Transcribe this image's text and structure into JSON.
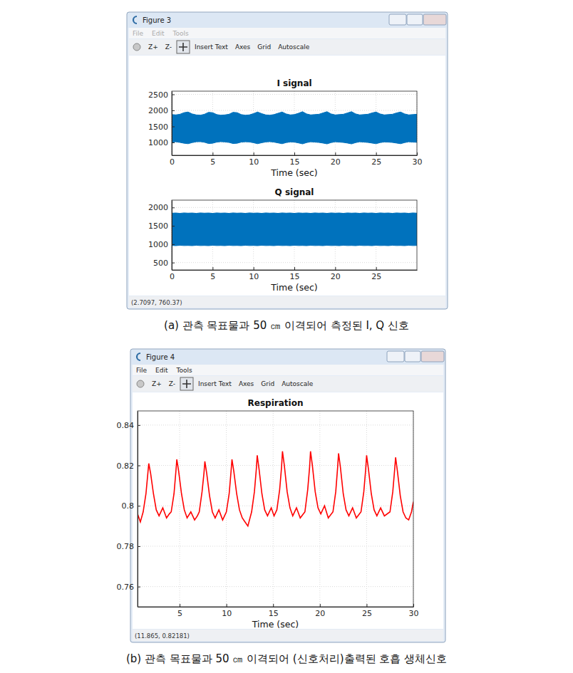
{
  "windows": [
    {
      "title": "Figure 3",
      "menu": [
        "File",
        "Edit",
        "Tools"
      ],
      "toolbar": [
        "Z+",
        "Z-",
        "Insert Text",
        "Axes",
        "Grid",
        "Autoscale"
      ],
      "status": "(2.7097, 760.37)",
      "caption": "(a) 관측 목표물과 50 ㎝ 이격되어 측정된 I, Q 신호"
    },
    {
      "title": "Figure 4",
      "menu": [
        "File",
        "Edit",
        "Tools"
      ],
      "toolbar": [
        "Z+",
        "Z-",
        "Insert Text",
        "Axes",
        "Grid",
        "Autoscale"
      ],
      "status": "(11.865, 0.82181)",
      "caption": "(b) 관측 목표물과 50 ㎝ 이격되어 (신호처리)출력된 호흡 생체신호"
    }
  ],
  "chart_data": [
    {
      "type": "range_area",
      "title": "I signal",
      "x_label": "Time (sec)",
      "color": "#0072bd",
      "grid": true,
      "xlim": [
        0,
        30
      ],
      "xticks": [
        0,
        5,
        10,
        15,
        20,
        25,
        30
      ],
      "ylim": [
        600,
        2600
      ],
      "yticks": [
        1000,
        1500,
        2000,
        2500
      ],
      "x": [
        0,
        0.5,
        1,
        1.5,
        2,
        2.5,
        3,
        3.5,
        4,
        4.5,
        5,
        5.5,
        6,
        6.5,
        7,
        7.5,
        8,
        8.5,
        9,
        9.5,
        10,
        10.5,
        11,
        11.5,
        12,
        12.5,
        13,
        13.5,
        14,
        14.5,
        15,
        15.5,
        16,
        16.5,
        17,
        17.5,
        18,
        18.5,
        19,
        19.5,
        20,
        20.5,
        21,
        21.5,
        22,
        22.5,
        23,
        23.5,
        24,
        24.5,
        25,
        25.5,
        26,
        26.5,
        27,
        27.5,
        28,
        28.5,
        29,
        29.5,
        30
      ],
      "values": [
        [
          1010,
          1870
        ],
        [
          1020,
          1860
        ],
        [
          1000,
          1880
        ],
        [
          975,
          1930
        ],
        [
          960,
          1950
        ],
        [
          995,
          1890
        ],
        [
          1020,
          1860
        ],
        [
          1025,
          1850
        ],
        [
          1005,
          1880
        ],
        [
          965,
          1940
        ],
        [
          975,
          1930
        ],
        [
          1010,
          1870
        ],
        [
          1025,
          1850
        ],
        [
          1015,
          1860
        ],
        [
          1000,
          1880
        ],
        [
          965,
          1940
        ],
        [
          975,
          1930
        ],
        [
          1010,
          1870
        ],
        [
          1020,
          1850
        ],
        [
          1015,
          1860
        ],
        [
          990,
          1900
        ],
        [
          960,
          1950
        ],
        [
          990,
          1900
        ],
        [
          1015,
          1860
        ],
        [
          1025,
          1850
        ],
        [
          1010,
          1870
        ],
        [
          985,
          1910
        ],
        [
          960,
          1950
        ],
        [
          995,
          1890
        ],
        [
          1015,
          1860
        ],
        [
          1010,
          1870
        ],
        [
          985,
          1910
        ],
        [
          955,
          1960
        ],
        [
          995,
          1890
        ],
        [
          1020,
          1860
        ],
        [
          1010,
          1870
        ],
        [
          1000,
          1880
        ],
        [
          980,
          1920
        ],
        [
          955,
          1960
        ],
        [
          995,
          1890
        ],
        [
          1020,
          1860
        ],
        [
          1010,
          1870
        ],
        [
          1000,
          1880
        ],
        [
          980,
          1920
        ],
        [
          955,
          1960
        ],
        [
          995,
          1890
        ],
        [
          1020,
          1860
        ],
        [
          1010,
          1870
        ],
        [
          1000,
          1880
        ],
        [
          980,
          1920
        ],
        [
          960,
          1950
        ],
        [
          995,
          1890
        ],
        [
          1015,
          1860
        ],
        [
          1010,
          1870
        ],
        [
          1000,
          1880
        ],
        [
          980,
          1920
        ],
        [
          960,
          1950
        ],
        [
          995,
          1890
        ],
        [
          1020,
          1860
        ],
        [
          1010,
          1870
        ],
        [
          1005,
          1880
        ]
      ]
    },
    {
      "type": "range_area",
      "title": "Q signal",
      "x_label": "Time (sec)",
      "color": "#0072bd",
      "grid": true,
      "xlim": [
        0,
        30
      ],
      "xticks": [
        0,
        5,
        10,
        15,
        20,
        25
      ],
      "ylim": [
        300,
        2200
      ],
      "yticks": [
        500,
        1000,
        1500,
        2000
      ],
      "x": [
        0,
        0.5,
        1,
        1.5,
        2,
        2.5,
        3,
        3.5,
        4,
        4.5,
        5,
        5.5,
        6,
        6.5,
        7,
        7.5,
        8,
        8.5,
        9,
        9.5,
        10,
        10.5,
        11,
        11.5,
        12,
        12.5,
        13,
        13.5,
        14,
        14.5,
        15,
        15.5,
        16,
        16.5,
        17,
        17.5,
        18,
        18.5,
        19,
        19.5,
        20,
        20.5,
        21,
        21.5,
        22,
        22.5,
        23,
        23.5,
        24,
        24.5,
        25,
        25.5,
        26,
        26.5,
        27,
        27.5,
        28,
        28.5,
        29,
        29.5,
        30
      ],
      "values": [
        [
          965,
          1845
        ],
        [
          960,
          1850
        ],
        [
          970,
          1840
        ],
        [
          962,
          1852
        ],
        [
          965,
          1845
        ],
        [
          960,
          1850
        ],
        [
          970,
          1840
        ],
        [
          962,
          1852
        ],
        [
          965,
          1845
        ],
        [
          960,
          1850
        ],
        [
          970,
          1840
        ],
        [
          962,
          1852
        ],
        [
          965,
          1845
        ],
        [
          960,
          1850
        ],
        [
          970,
          1840
        ],
        [
          962,
          1852
        ],
        [
          965,
          1845
        ],
        [
          960,
          1850
        ],
        [
          970,
          1840
        ],
        [
          962,
          1852
        ],
        [
          965,
          1845
        ],
        [
          960,
          1850
        ],
        [
          970,
          1840
        ],
        [
          962,
          1852
        ],
        [
          965,
          1845
        ],
        [
          960,
          1850
        ],
        [
          970,
          1840
        ],
        [
          962,
          1852
        ],
        [
          965,
          1845
        ],
        [
          960,
          1850
        ],
        [
          970,
          1840
        ],
        [
          962,
          1852
        ],
        [
          965,
          1845
        ],
        [
          960,
          1850
        ],
        [
          970,
          1840
        ],
        [
          962,
          1852
        ],
        [
          965,
          1845
        ],
        [
          960,
          1850
        ],
        [
          970,
          1840
        ],
        [
          962,
          1852
        ],
        [
          965,
          1845
        ],
        [
          960,
          1850
        ],
        [
          970,
          1840
        ],
        [
          962,
          1852
        ],
        [
          965,
          1845
        ],
        [
          960,
          1850
        ],
        [
          970,
          1840
        ],
        [
          962,
          1852
        ],
        [
          965,
          1845
        ],
        [
          960,
          1850
        ],
        [
          970,
          1840
        ],
        [
          962,
          1852
        ],
        [
          965,
          1845
        ],
        [
          960,
          1850
        ],
        [
          970,
          1840
        ],
        [
          962,
          1852
        ],
        [
          965,
          1845
        ],
        [
          960,
          1850
        ],
        [
          970,
          1840
        ],
        [
          962,
          1852
        ],
        [
          965,
          1845
        ]
      ]
    },
    {
      "type": "line",
      "title": "Respiration",
      "x_label": "Time (sec)",
      "color": "#ff0000",
      "grid": true,
      "xlim": [
        0.5,
        30
      ],
      "xticks": [
        5,
        10,
        15,
        20,
        25,
        30
      ],
      "ylim": [
        0.75,
        0.847
      ],
      "yticks": [
        0.76,
        0.78,
        0.8,
        0.82,
        0.84
      ],
      "x": [
        0.5,
        0.8,
        1.1,
        1.4,
        1.6,
        1.7,
        1.9,
        2.2,
        2.5,
        2.8,
        3.2,
        3.6,
        3.9,
        4.1,
        4.4,
        4.6,
        4.7,
        4.9,
        5.2,
        5.5,
        5.8,
        6.2,
        6.6,
        6.9,
        7.1,
        7.4,
        7.6,
        7.7,
        7.9,
        8.2,
        8.5,
        8.8,
        9.2,
        9.6,
        10.0,
        10.3,
        10.5,
        10.6,
        10.8,
        11.1,
        11.4,
        11.7,
        12.0,
        12.3,
        12.7,
        13.0,
        13.2,
        13.3,
        13.5,
        13.8,
        14.1,
        14.4,
        14.8,
        15.1,
        15.4,
        15.7,
        15.9,
        16.0,
        16.2,
        16.5,
        16.8,
        17.1,
        17.5,
        17.9,
        18.4,
        18.7,
        18.9,
        19.0,
        19.2,
        19.5,
        19.8,
        20.1,
        20.5,
        20.9,
        21.4,
        21.7,
        21.9,
        22.0,
        22.2,
        22.5,
        22.8,
        23.1,
        23.5,
        23.9,
        24.4,
        24.7,
        24.9,
        25.0,
        25.2,
        25.5,
        25.8,
        26.1,
        26.5,
        26.9,
        27.5,
        27.8,
        28.0,
        28.1,
        28.3,
        28.6,
        28.9,
        29.2,
        29.5,
        29.8,
        30
      ],
      "values": [
        0.796,
        0.792,
        0.797,
        0.806,
        0.816,
        0.821,
        0.816,
        0.806,
        0.798,
        0.795,
        0.799,
        0.794,
        0.796,
        0.797,
        0.806,
        0.817,
        0.823,
        0.817,
        0.806,
        0.798,
        0.794,
        0.797,
        0.793,
        0.795,
        0.797,
        0.807,
        0.816,
        0.822,
        0.816,
        0.805,
        0.797,
        0.794,
        0.798,
        0.793,
        0.797,
        0.806,
        0.817,
        0.823,
        0.817,
        0.806,
        0.798,
        0.794,
        0.792,
        0.79,
        0.797,
        0.807,
        0.818,
        0.825,
        0.818,
        0.806,
        0.798,
        0.795,
        0.799,
        0.795,
        0.798,
        0.808,
        0.819,
        0.827,
        0.82,
        0.807,
        0.799,
        0.795,
        0.799,
        0.794,
        0.797,
        0.808,
        0.819,
        0.827,
        0.82,
        0.807,
        0.799,
        0.796,
        0.8,
        0.794,
        0.797,
        0.807,
        0.819,
        0.826,
        0.819,
        0.806,
        0.798,
        0.795,
        0.799,
        0.794,
        0.797,
        0.807,
        0.818,
        0.825,
        0.818,
        0.806,
        0.798,
        0.795,
        0.799,
        0.795,
        0.797,
        0.807,
        0.818,
        0.824,
        0.817,
        0.805,
        0.797,
        0.794,
        0.793,
        0.797,
        0.802
      ]
    }
  ]
}
